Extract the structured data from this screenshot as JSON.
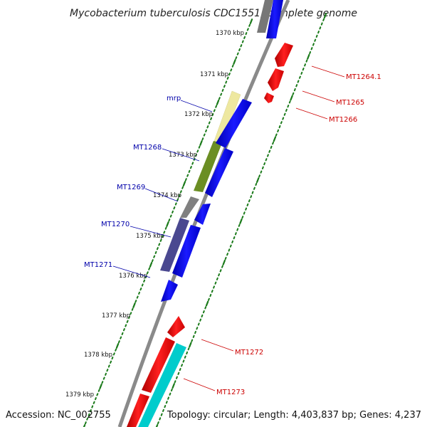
{
  "title": "Mycobacterium tuberculosis CDC1551, complete genome",
  "footer": {
    "accession": "Accession: NC_002755",
    "summary": "Topology: circular; Length: 4,403,837 bp; Genes: 4,237"
  },
  "kbp_labels": [
    "1370 kbp",
    "1371 kbp",
    "1372 kbp",
    "1373 kbp",
    "1374 kbp",
    "1375 kbp",
    "1376 kbp",
    "1377 kbp",
    "1378 kbp",
    "1379 kbp"
  ],
  "left_genes": [
    "mrp",
    "MT1268",
    "MT1269",
    "MT1270",
    "MT1271"
  ],
  "right_genes": [
    "MT1264.1",
    "MT1265",
    "MT1266",
    "MT1272",
    "MT1273"
  ],
  "colors": {
    "forward": "#0000ee",
    "reverse": "#ee0000",
    "left_label": "#0000aa",
    "right_label": "#cc0000",
    "backbone": "#888888",
    "ticks": "#1a7a1a",
    "mrp": "#eee8a0",
    "MT1268": "#6b8e23",
    "MT1269": "#808080",
    "MT1270": "#4a4890",
    "cyan": "#00cccc",
    "grey": "#777777"
  }
}
